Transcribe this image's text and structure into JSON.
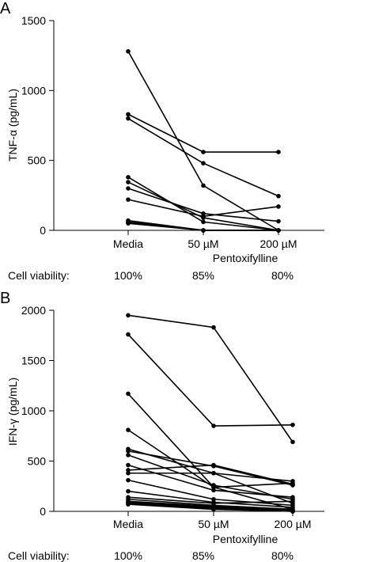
{
  "chart_data": [
    {
      "panel": "A",
      "type": "line",
      "ylabel": "TNF-α (pg/mL)",
      "xlabel": "Pentoxifylline",
      "categories": [
        "Media",
        "50 µM",
        "200 µM"
      ],
      "ylim": [
        0,
        1500
      ],
      "yticks": [
        0,
        500,
        1000,
        1500
      ],
      "viability_label": "Cell viability:",
      "viability": [
        "100%",
        "85%",
        "80%"
      ],
      "series": [
        {
          "values": [
            1280,
            320,
            0
          ]
        },
        {
          "values": [
            830,
            560,
            560
          ]
        },
        {
          "values": [
            800,
            480,
            245
          ]
        },
        {
          "values": [
            380,
            60,
            0
          ]
        },
        {
          "values": [
            345,
            90,
            0
          ]
        },
        {
          "values": [
            300,
            120,
            65
          ]
        },
        {
          "values": [
            220,
            100,
            170
          ]
        },
        {
          "values": [
            70,
            0,
            0
          ]
        },
        {
          "values": [
            60,
            0,
            0
          ]
        },
        {
          "values": [
            55,
            0,
            0
          ]
        },
        {
          "values": [
            50,
            0,
            0
          ]
        }
      ]
    },
    {
      "panel": "B",
      "type": "line",
      "ylabel": "IFN-γ (pg/mL)",
      "xlabel": "Pentoxifylline",
      "categories": [
        "Media",
        "50 µM",
        "200 µM"
      ],
      "ylim": [
        0,
        2000
      ],
      "yticks": [
        0,
        500,
        1000,
        1500,
        2000
      ],
      "viability_label": "Cell viability:",
      "viability": [
        "100%",
        "85%",
        "80%"
      ],
      "series": [
        {
          "values": [
            1950,
            1830,
            690
          ]
        },
        {
          "values": [
            1760,
            850,
            860
          ]
        },
        {
          "values": [
            1170,
            240,
            20
          ]
        },
        {
          "values": [
            810,
            240,
            280
          ]
        },
        {
          "values": [
            620,
            380,
            300
          ]
        },
        {
          "values": [
            600,
            450,
            260
          ]
        },
        {
          "values": [
            560,
            260,
            120
          ]
        },
        {
          "values": [
            460,
            210,
            140
          ]
        },
        {
          "values": [
            410,
            460,
            270
          ]
        },
        {
          "values": [
            380,
            380,
            80
          ]
        },
        {
          "values": [
            310,
            120,
            60
          ]
        },
        {
          "values": [
            200,
            90,
            40
          ]
        },
        {
          "values": [
            140,
            80,
            100
          ]
        },
        {
          "values": [
            120,
            60,
            20
          ]
        },
        {
          "values": [
            100,
            50,
            10
          ]
        },
        {
          "values": [
            90,
            40,
            0
          ]
        },
        {
          "values": [
            80,
            30,
            0
          ]
        },
        {
          "values": [
            70,
            20,
            0
          ]
        }
      ]
    }
  ]
}
